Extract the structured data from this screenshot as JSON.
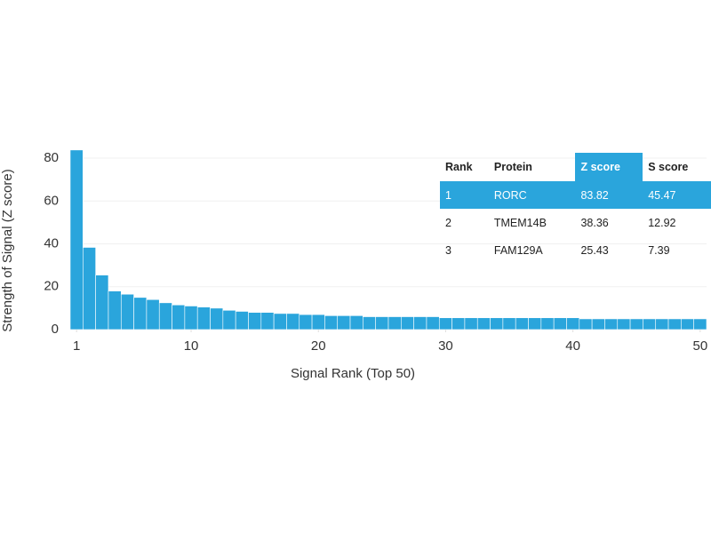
{
  "chart_data": {
    "type": "bar",
    "xlabel": "Signal Rank (Top 50)",
    "ylabel": "Strength of Signal (Z score)",
    "x": [
      1,
      2,
      3,
      4,
      5,
      6,
      7,
      8,
      9,
      10,
      11,
      12,
      13,
      14,
      15,
      16,
      17,
      18,
      19,
      20,
      21,
      22,
      23,
      24,
      25,
      26,
      27,
      28,
      29,
      30,
      31,
      32,
      33,
      34,
      35,
      36,
      37,
      38,
      39,
      40,
      41,
      42,
      43,
      44,
      45,
      46,
      47,
      48,
      49,
      50
    ],
    "values": [
      83.82,
      38.36,
      25.43,
      18,
      16.5,
      15,
      14,
      12.5,
      11.5,
      11,
      10.5,
      10,
      9,
      8.5,
      8,
      8,
      7.5,
      7.5,
      7,
      7,
      6.5,
      6.5,
      6.5,
      6,
      6,
      6,
      6,
      6,
      6,
      5.5,
      5.5,
      5.5,
      5.5,
      5.5,
      5.5,
      5.5,
      5.5,
      5.5,
      5.5,
      5.5,
      5,
      5,
      5,
      5,
      5,
      5,
      5,
      5,
      5,
      5
    ],
    "color": "#2aa5dc",
    "xlim": [
      0.5,
      50.5
    ],
    "xticks": [
      1,
      10,
      20,
      30,
      40,
      50
    ],
    "ylim": [
      0,
      85
    ],
    "yticks": [
      0,
      20,
      40,
      60,
      80
    ],
    "grid": true,
    "table": {
      "columns": [
        "Rank",
        "Protein",
        "Z score",
        "S score"
      ],
      "rows": [
        [
          "1",
          "RORC",
          "83.82",
          "45.47"
        ],
        [
          "2",
          "TMEM14B",
          "38.36",
          "12.92"
        ],
        [
          "3",
          "FAM129A",
          "25.43",
          "7.39"
        ]
      ]
    }
  }
}
